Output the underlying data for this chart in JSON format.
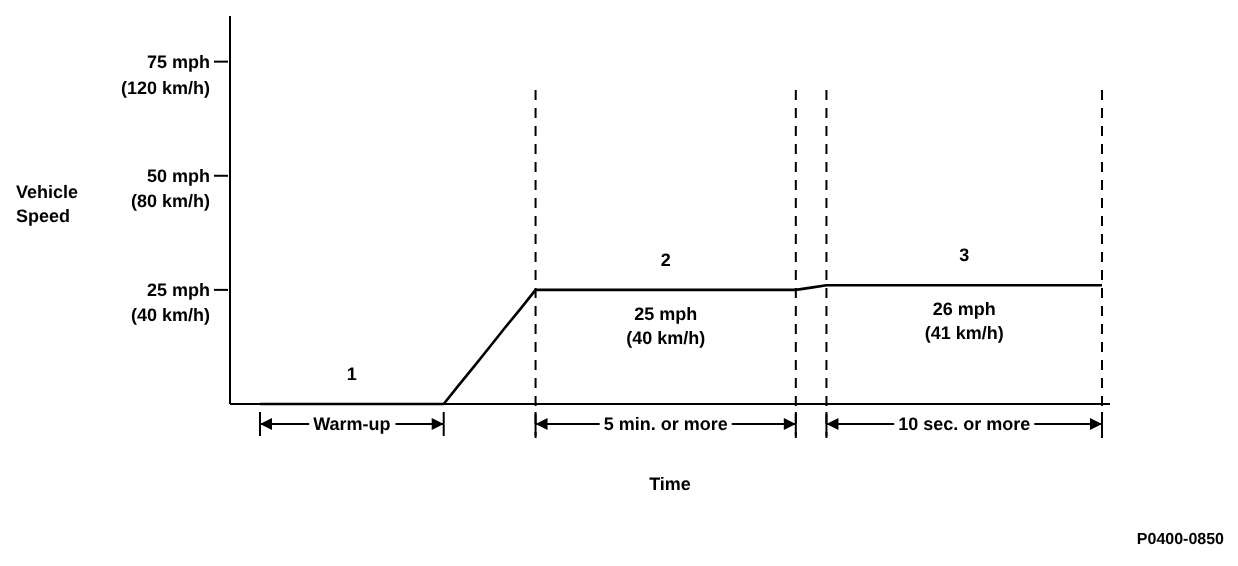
{
  "chart_data": {
    "type": "line",
    "xlabel": "Time",
    "y2label": "Vehicle\nSpeed",
    "categories": [
      null,
      null,
      null,
      null,
      null,
      null,
      null,
      null,
      null,
      null,
      null,
      null,
      null,
      null,
      null,
      null,
      null,
      null,
      null,
      null,
      null,
      null,
      null,
      null,
      null,
      null,
      null,
      null,
      null,
      null,
      null,
      null,
      null,
      null,
      null,
      null,
      null,
      null,
      null,
      null,
      null,
      null,
      null,
      null,
      null,
      null,
      null,
      null,
      null,
      null,
      null,
      null,
      null,
      null,
      null,
      null
    ],
    "series": [
      {
        "color": "#000000",
        "values": [
          0,
          0,
          0,
          0,
          0,
          0,
          0,
          0,
          0,
          0,
          0,
          0,
          0,
          4.2,
          8.3,
          12.5,
          16.7,
          20.8,
          25,
          25,
          25,
          25,
          25,
          25,
          25,
          25,
          25,
          25,
          25,
          25,
          25,
          25,
          25,
          25,
          25,
          25,
          25.5,
          26,
          26,
          26,
          26,
          26,
          26,
          26,
          26,
          26,
          26,
          26,
          26,
          26,
          26,
          26,
          26,
          26,
          26,
          26
        ]
      }
    ],
    "ylim": [
      0,
      85
    ],
    "yticks": [
      {
        "value": 25,
        "label": "25 mph"
      },
      {
        "value": 50,
        "label": "50 mph"
      },
      {
        "value": 75,
        "label": "75 mph"
      }
    ],
    "y2lim": [
      8.5,
      145.3
    ],
    "y2ticks": [
      {
        "value": 40,
        "label": "(40 km/h)"
      },
      {
        "value": 80,
        "label": "(80 km/h)"
      },
      {
        "value": 120,
        "label": "(120 km/h)"
      }
    ],
    "tick_labels": "y",
    "grid": "x",
    "marker": "none",
    "line_style": "solid",
    "annotations": [
      "1",
      "Warm-up",
      "2",
      "25 mph\n(40 km/h)",
      "5 min. or more",
      "3",
      "26 mph\n(41 km/h)",
      "10 sec. or more",
      "P0400-0850"
    ]
  }
}
